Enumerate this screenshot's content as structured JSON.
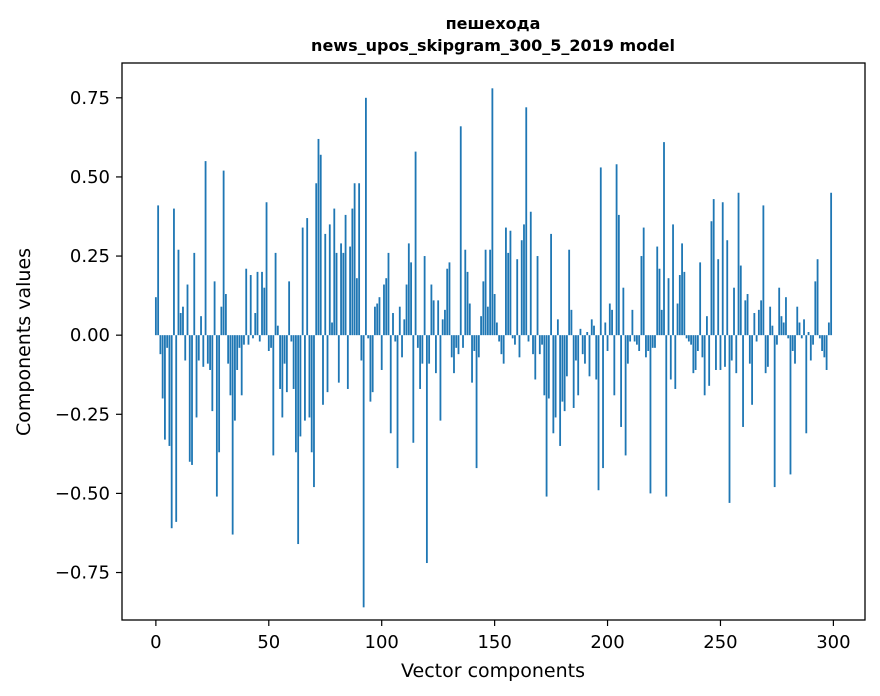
{
  "chart_data": {
    "type": "bar",
    "title_line1": "пешехода",
    "title_line2": "news_upos_skipgram_300_5_2019 model",
    "xlabel": "Vector components",
    "ylabel": "Components values",
    "xlim": [
      -15,
      314
    ],
    "ylim": [
      -0.9,
      0.86
    ],
    "xticks": [
      0,
      50,
      100,
      150,
      200,
      250,
      300
    ],
    "xtick_labels": [
      "0",
      "50",
      "100",
      "150",
      "200",
      "250",
      "300"
    ],
    "yticks": [
      -0.75,
      -0.5,
      -0.25,
      0.0,
      0.25,
      0.5,
      0.75
    ],
    "ytick_labels": [
      "−0.75",
      "−0.50",
      "−0.25",
      "0.00",
      "0.25",
      "0.50",
      "0.75"
    ],
    "bar_color": "#1f77b4",
    "values": [
      0.12,
      0.41,
      -0.06,
      -0.2,
      -0.33,
      -0.04,
      -0.35,
      -0.61,
      0.4,
      -0.59,
      0.27,
      0.07,
      0.09,
      -0.08,
      0.16,
      -0.4,
      -0.41,
      0.26,
      -0.26,
      -0.08,
      0.06,
      -0.1,
      0.55,
      -0.09,
      -0.11,
      -0.24,
      0.17,
      -0.51,
      -0.37,
      0.09,
      0.52,
      0.13,
      -0.09,
      -0.19,
      -0.63,
      -0.27,
      -0.11,
      -0.04,
      -0.19,
      -0.03,
      0.21,
      -0.03,
      0.19,
      -0.01,
      0.07,
      0.2,
      -0.02,
      0.2,
      0.15,
      0.42,
      -0.05,
      -0.04,
      -0.38,
      0.26,
      0.03,
      -0.17,
      -0.26,
      -0.09,
      -0.18,
      0.17,
      -0.02,
      -0.17,
      -0.37,
      -0.66,
      -0.32,
      0.34,
      -0.27,
      0.37,
      -0.26,
      -0.37,
      -0.48,
      0.48,
      0.62,
      0.57,
      -0.22,
      0.32,
      -0.18,
      0.35,
      0.04,
      0.4,
      0.26,
      -0.15,
      0.29,
      0.26,
      0.38,
      -0.17,
      0.28,
      0.4,
      0.48,
      0.18,
      0.48,
      -0.08,
      -0.86,
      0.75,
      -0.01,
      -0.21,
      -0.18,
      0.09,
      0.1,
      0.12,
      -0.11,
      0.16,
      0.18,
      0.26,
      -0.31,
      0.07,
      -0.02,
      -0.42,
      0.09,
      -0.07,
      0.05,
      0.16,
      0.29,
      0.23,
      -0.34,
      0.58,
      -0.04,
      -0.17,
      -0.09,
      0.25,
      -0.72,
      -0.09,
      0.16,
      0.11,
      -0.12,
      0.11,
      -0.27,
      0.05,
      0.08,
      0.21,
      0.23,
      -0.07,
      -0.12,
      -0.04,
      -0.06,
      0.66,
      -0.04,
      0.27,
      0.2,
      0.1,
      -0.15,
      -0.05,
      -0.42,
      -0.07,
      0.06,
      0.17,
      0.27,
      0.09,
      0.27,
      0.78,
      0.13,
      0.04,
      -0.02,
      -0.06,
      -0.09,
      0.34,
      0.26,
      0.33,
      -0.01,
      -0.03,
      0.24,
      -0.07,
      0.3,
      0.35,
      0.72,
      -0.02,
      0.39,
      -0.06,
      -0.14,
      0.25,
      -0.06,
      -0.03,
      -0.19,
      -0.51,
      -0.2,
      0.32,
      -0.31,
      -0.26,
      0.05,
      -0.35,
      -0.21,
      -0.24,
      -0.13,
      0.27,
      0.08,
      -0.23,
      -0.08,
      -0.19,
      0.02,
      -0.06,
      -0.09,
      0.01,
      -0.13,
      0.05,
      0.03,
      -0.14,
      -0.49,
      0.53,
      -0.42,
      0.04,
      -0.05,
      0.1,
      0.08,
      -0.19,
      0.54,
      0.38,
      -0.29,
      0.15,
      -0.38,
      -0.09,
      -0.02,
      0.08,
      -0.02,
      -0.03,
      -0.05,
      0.25,
      0.34,
      -0.07,
      -0.05,
      -0.5,
      -0.04,
      -0.04,
      0.28,
      0.21,
      0.08,
      0.61,
      -0.51,
      0.18,
      -0.14,
      0.35,
      -0.17,
      0.1,
      0.19,
      0.29,
      0.2,
      -0.01,
      -0.02,
      -0.03,
      -0.12,
      -0.11,
      -0.05,
      0.23,
      -0.07,
      -0.19,
      0.06,
      -0.16,
      0.36,
      0.43,
      -0.11,
      0.24,
      -0.11,
      0.42,
      -0.1,
      0.3,
      -0.53,
      -0.08,
      0.15,
      -0.12,
      0.45,
      0.22,
      -0.29,
      0.11,
      0.13,
      -0.09,
      -0.22,
      0.07,
      -0.02,
      0.08,
      0.11,
      0.41,
      -0.12,
      -0.1,
      0.09,
      0.03,
      -0.48,
      -0.03,
      0.15,
      0.06,
      0.04,
      0.12,
      -0.01,
      -0.44,
      -0.05,
      -0.09,
      0.09,
      0.04,
      -0.01,
      0.05,
      -0.31,
      0.01,
      -0.08,
      -0.03,
      0.17,
      0.24,
      -0.01,
      -0.05,
      -0.07,
      -0.11,
      0.04,
      0.45
    ]
  }
}
